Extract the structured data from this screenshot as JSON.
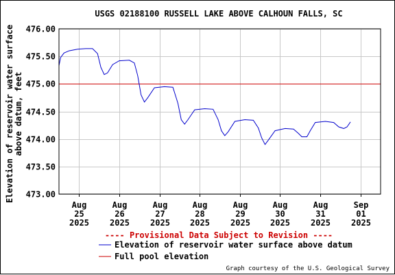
{
  "chart_data": {
    "type": "line",
    "title": "USGS 02188100 RUSSELL LAKE ABOVE CALHOUN FALLS, SC",
    "ylabel_line1": "Elevation of reservoir water surface",
    "ylabel_line2": "above datum, feet",
    "ylim": [
      473.0,
      476.0
    ],
    "yticks": [
      "476.00",
      "475.50",
      "475.00",
      "474.50",
      "474.00",
      "473.50",
      "473.00"
    ],
    "ytick_values": [
      476.0,
      475.5,
      475.0,
      474.5,
      474.0,
      473.5,
      473.0
    ],
    "xlim": [
      "2025-08-24T12:00",
      "2025-09-01T12:00"
    ],
    "xticks": [
      {
        "month": "Aug",
        "day": "25",
        "year": "2025",
        "date": "2025-08-25"
      },
      {
        "month": "Aug",
        "day": "26",
        "year": "2025",
        "date": "2025-08-26"
      },
      {
        "month": "Aug",
        "day": "27",
        "year": "2025",
        "date": "2025-08-27"
      },
      {
        "month": "Aug",
        "day": "28",
        "year": "2025",
        "date": "2025-08-28"
      },
      {
        "month": "Aug",
        "day": "29",
        "year": "2025",
        "date": "2025-08-29"
      },
      {
        "month": "Aug",
        "day": "30",
        "year": "2025",
        "date": "2025-08-30"
      },
      {
        "month": "Aug",
        "day": "31",
        "year": "2025",
        "date": "2025-08-31"
      },
      {
        "month": "Sep",
        "day": "01",
        "year": "2025",
        "date": "2025-09-01"
      }
    ],
    "grid": true,
    "provisional_note": "---- Provisional Data Subject to Revision ----",
    "series": [
      {
        "name": "Elevation of reservoir water surface above datum",
        "color": "#0000cc",
        "points": [
          [
            "2025-08-24T12:00",
            475.33
          ],
          [
            "2025-08-24T13:00",
            475.48
          ],
          [
            "2025-08-24T15:00",
            475.56
          ],
          [
            "2025-08-24T18:00",
            475.6
          ],
          [
            "2025-08-24T23:00",
            475.63
          ],
          [
            "2025-08-25T04:00",
            475.64
          ],
          [
            "2025-08-25T08:00",
            475.64
          ],
          [
            "2025-08-25T11:00",
            475.55
          ],
          [
            "2025-08-25T13:00",
            475.3
          ],
          [
            "2025-08-25T15:00",
            475.17
          ],
          [
            "2025-08-25T17:00",
            475.2
          ],
          [
            "2025-08-25T20:00",
            475.35
          ],
          [
            "2025-08-26T00:00",
            475.42
          ],
          [
            "2025-08-26T06:00",
            475.43
          ],
          [
            "2025-08-26T09:00",
            475.38
          ],
          [
            "2025-08-26T11:00",
            475.15
          ],
          [
            "2025-08-26T13:00",
            474.8
          ],
          [
            "2025-08-26T15:00",
            474.67
          ],
          [
            "2025-08-26T17:00",
            474.75
          ],
          [
            "2025-08-26T21:00",
            474.93
          ],
          [
            "2025-08-27T03:00",
            474.95
          ],
          [
            "2025-08-27T08:00",
            474.94
          ],
          [
            "2025-08-27T11:00",
            474.65
          ],
          [
            "2025-08-27T13:00",
            474.35
          ],
          [
            "2025-08-27T15:00",
            474.27
          ],
          [
            "2025-08-27T17:00",
            474.35
          ],
          [
            "2025-08-27T21:00",
            474.53
          ],
          [
            "2025-08-28T03:00",
            474.55
          ],
          [
            "2025-08-28T08:00",
            474.54
          ],
          [
            "2025-08-28T11:00",
            474.35
          ],
          [
            "2025-08-28T13:00",
            474.15
          ],
          [
            "2025-08-28T15:00",
            474.06
          ],
          [
            "2025-08-28T17:00",
            474.13
          ],
          [
            "2025-08-28T21:00",
            474.32
          ],
          [
            "2025-08-29T03:00",
            474.35
          ],
          [
            "2025-08-29T08:00",
            474.34
          ],
          [
            "2025-08-29T11:00",
            474.2
          ],
          [
            "2025-08-29T13:00",
            474.02
          ],
          [
            "2025-08-29T15:00",
            473.9
          ],
          [
            "2025-08-29T17:00",
            473.98
          ],
          [
            "2025-08-29T21:00",
            474.15
          ],
          [
            "2025-08-30T03:00",
            474.19
          ],
          [
            "2025-08-30T08:00",
            474.18
          ],
          [
            "2025-08-30T11:00",
            474.1
          ],
          [
            "2025-08-30T13:00",
            474.04
          ],
          [
            "2025-08-30T16:00",
            474.04
          ],
          [
            "2025-08-30T18:00",
            474.15
          ],
          [
            "2025-08-30T21:00",
            474.3
          ],
          [
            "2025-08-31T03:00",
            474.32
          ],
          [
            "2025-08-31T08:00",
            474.3
          ],
          [
            "2025-08-31T11:00",
            474.22
          ],
          [
            "2025-08-31T14:00",
            474.19
          ],
          [
            "2025-08-31T16:00",
            474.22
          ],
          [
            "2025-08-31T18:00",
            474.31
          ]
        ]
      },
      {
        "name": "Full pool elevation",
        "color": "#cc0000",
        "constant": 475.0
      }
    ],
    "legend": [
      {
        "label": "Elevation of reservoir water surface above datum",
        "color": "#0000cc"
      },
      {
        "label": "Full pool elevation",
        "color": "#cc0000"
      }
    ]
  },
  "credit": "Graph courtesy of the U.S. Geological Survey"
}
